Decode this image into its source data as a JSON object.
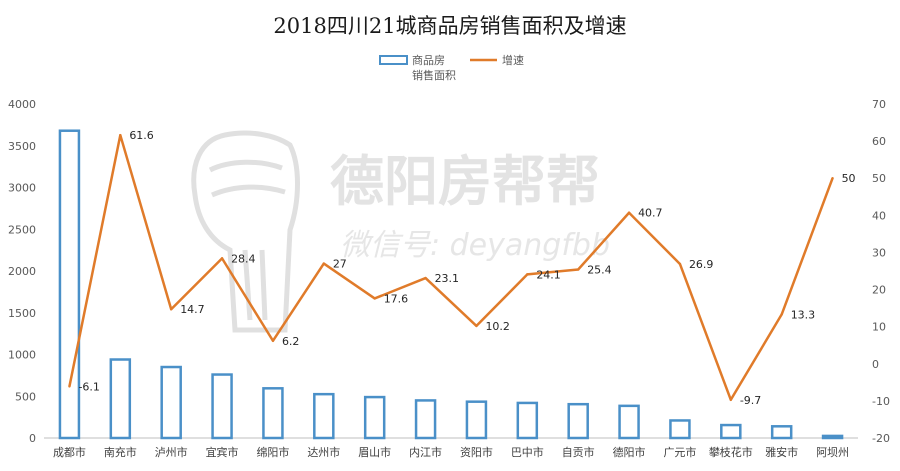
{
  "watermark": {
    "name": "德阳房帮帮",
    "wechat": "微信号: deyangfbb"
  },
  "chart_data": {
    "type": "bar+line",
    "title": "2018四川21城商品房销售面积及增速",
    "categories": [
      "成都市",
      "南充市",
      "泸州市",
      "宜宾市",
      "绵阳市",
      "达州市",
      "眉山市",
      "内江市",
      "资阳市",
      "巴中市",
      "自贡市",
      "德阳市",
      "广元市",
      "攀枝花市",
      "雅安市",
      "阿坝州"
    ],
    "series": [
      {
        "name": "商品房销售面积",
        "type": "bar",
        "axis": "left",
        "color": "#4a90c8",
        "values": [
          3680,
          940,
          850,
          760,
          595,
          525,
          490,
          450,
          435,
          420,
          405,
          385,
          210,
          155,
          140,
          25
        ]
      },
      {
        "name": "增速",
        "type": "line",
        "axis": "right",
        "color": "#e07b2a",
        "values": [
          -6.1,
          61.6,
          14.7,
          28.4,
          6.2,
          27,
          17.6,
          23.1,
          10.2,
          24.1,
          25.4,
          40.7,
          26.9,
          -9.7,
          13.3,
          50
        ],
        "labels": [
          "-6.1",
          "61.6",
          "14.7",
          "28.4",
          "6.2",
          "27",
          "17.6",
          "23.1",
          "10.2",
          "24.1",
          "25.4",
          "40.7",
          "26.9",
          "-9.7",
          "13.3",
          "50"
        ]
      }
    ],
    "y_left": {
      "min": 0,
      "max": 4000,
      "ticks": [
        "0",
        "500",
        "1000",
        "1500",
        "2000",
        "2500",
        "3000",
        "3500",
        "4000"
      ]
    },
    "y_right": {
      "min": -20,
      "max": 70,
      "ticks": [
        "-20",
        "-10",
        "0",
        "10",
        "20",
        "30",
        "40",
        "50",
        "60",
        "70"
      ]
    },
    "legend": {
      "position": "top",
      "bar_label_lines": [
        "商品房",
        "销售面积"
      ],
      "line_label": "增速"
    },
    "grid": false
  }
}
